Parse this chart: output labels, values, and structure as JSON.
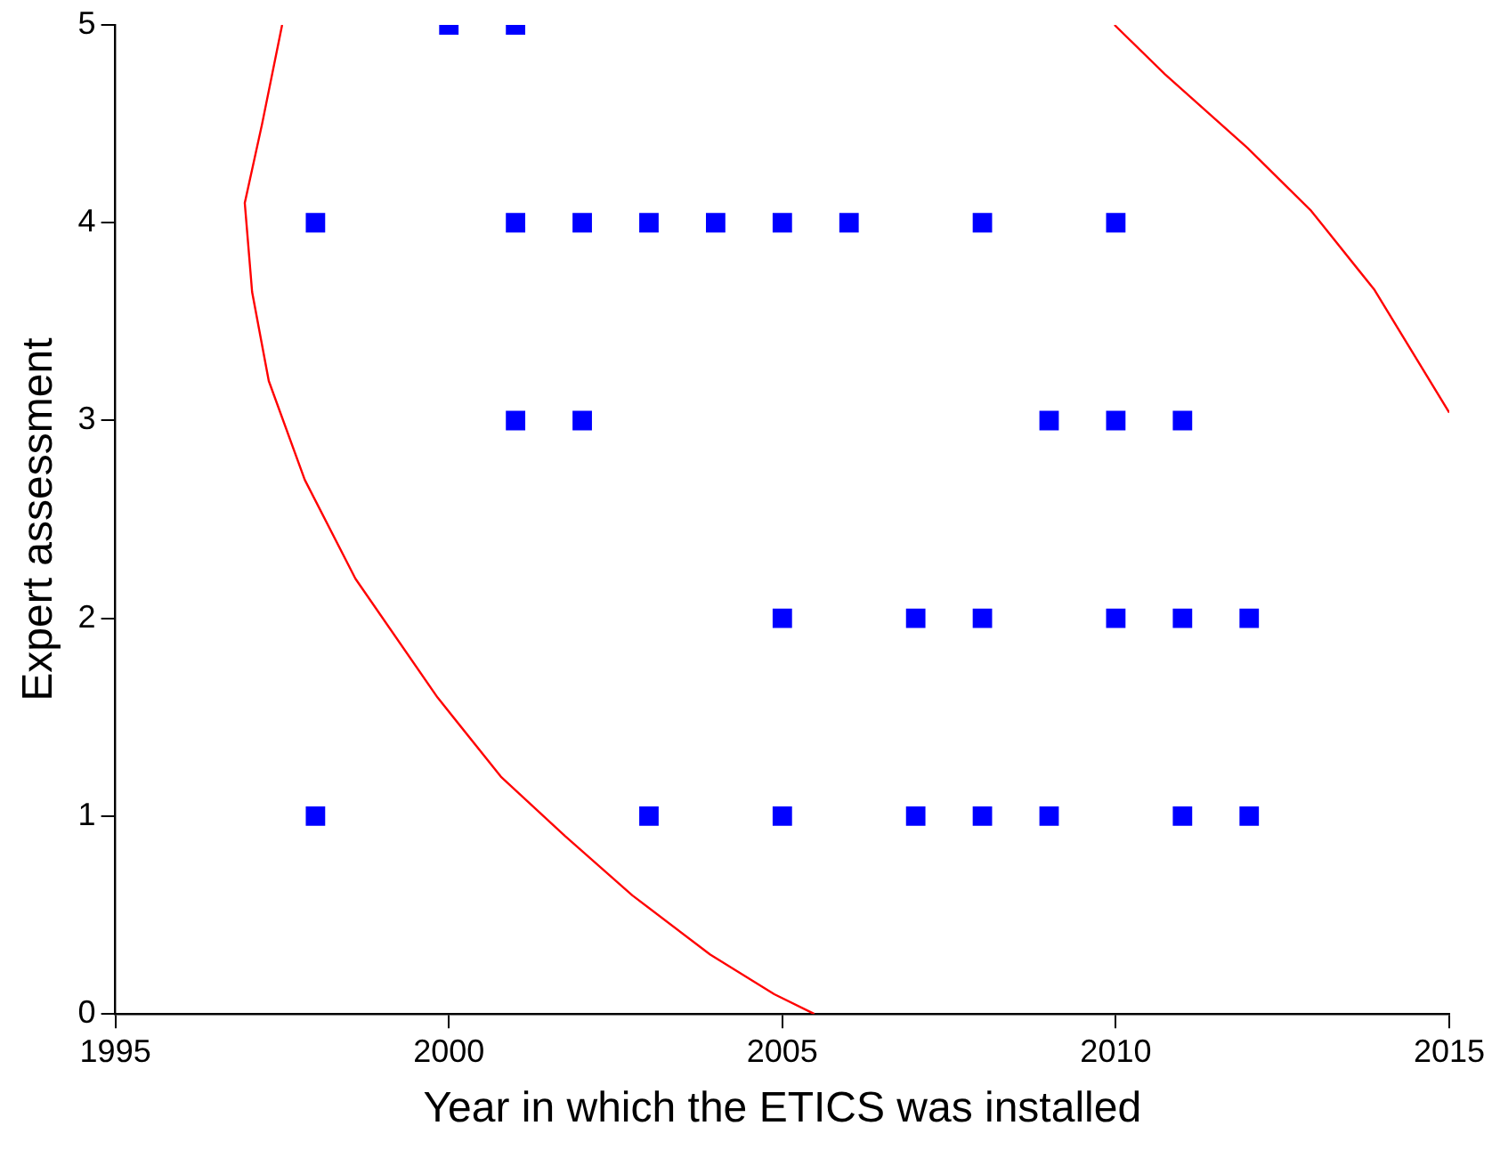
{
  "chart_data": {
    "type": "scatter",
    "xlabel": "Year in which the ETICS was installed",
    "ylabel": "Expert assessment",
    "xlim": [
      1995,
      2015
    ],
    "xticks": [
      1995,
      2000,
      2005,
      2010,
      2015
    ],
    "ylim": [
      0,
      5
    ],
    "yticks": [
      0,
      1,
      2,
      3,
      4,
      5
    ],
    "grid": false,
    "legend": false,
    "series": [
      {
        "color": "#0000ff",
        "marker": "square",
        "x": [
          2000,
          2001,
          1998,
          2001,
          2002,
          2003,
          2004,
          2005,
          2006,
          2008,
          2010,
          2001,
          2002,
          2009,
          2010,
          2011,
          2005,
          2007,
          2008,
          2010,
          2011,
          2012,
          1998,
          2003,
          2005,
          2007,
          2008,
          2009,
          2011,
          2012
        ],
        "values": [
          5,
          5,
          4,
          4,
          4,
          4,
          4,
          4,
          4,
          4,
          4,
          3,
          3,
          3,
          3,
          3,
          2,
          2,
          2,
          2,
          2,
          2,
          1,
          1,
          1,
          1,
          1,
          1,
          1,
          1
        ]
      },
      {
        "type": "line",
        "color": "#ff0000",
        "marker": "none",
        "line_style": "solid",
        "x": [
          1997.5,
          1997.2,
          1996.94,
          1997.05,
          1997.3,
          1997.84,
          1998.6,
          1999.83,
          2000.78,
          2001.74,
          2002.75,
          2003.92,
          2004.88,
          2005.48
        ],
        "values": [
          5,
          4.5,
          4.1,
          3.65,
          3.2,
          2.7,
          2.2,
          1.6,
          1.2,
          0.9,
          0.6,
          0.3,
          0.1,
          0
        ]
      },
      {
        "type": "line",
        "color": "#ff0000",
        "marker": "none",
        "line_style": "solid",
        "x": [
          2009.98,
          2010.74,
          2011.97,
          2012.93,
          2013.88,
          2015
        ],
        "values": [
          5,
          4.75,
          4.38,
          4.06,
          3.66,
          3.04
        ]
      }
    ]
  }
}
